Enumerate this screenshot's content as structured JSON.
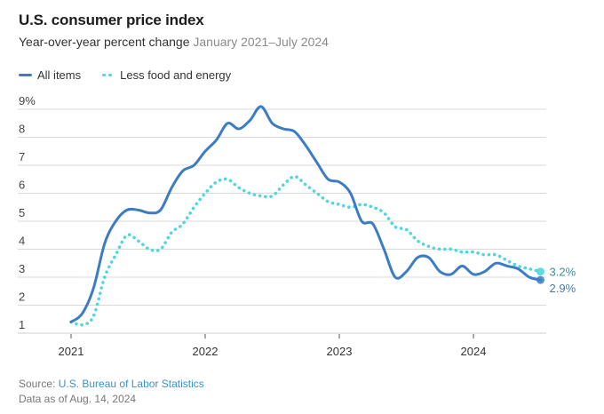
{
  "header": {
    "title": "U.S. consumer price index",
    "subtitle": "Year-over-year percent change",
    "date_range": "January 2021–July 2024"
  },
  "legend": [
    {
      "label": "All items",
      "style": "solid-line"
    },
    {
      "label": "Less food and energy",
      "style": "dotted-line"
    }
  ],
  "colors": {
    "all_items": "#3b7cc4",
    "core": "#4fd6df",
    "grid": "#d9d9d9",
    "end_label_all": "#4a7ba8",
    "end_label_core": "#3e8c94"
  },
  "footer": {
    "source_prefix": "Source: ",
    "source_link": "U.S. Bureau of Labor Statistics",
    "data_as_of": "Data as of Aug. 14, 2024"
  },
  "chart_data": {
    "type": "line",
    "title": "U.S. consumer price index",
    "subtitle": "Year-over-year percent change January 2021–July 2024",
    "xlabel": "",
    "ylabel": "",
    "x_start": "2021-01",
    "x_end": "2024-07",
    "x_ticks": [
      "2021",
      "2022",
      "2023",
      "2024"
    ],
    "y_ticks": [
      "9%",
      "8",
      "7",
      "6",
      "5",
      "4",
      "3",
      "2",
      "1"
    ],
    "y_tick_values": [
      9,
      8,
      7,
      6,
      5,
      4,
      3,
      2,
      1
    ],
    "ylim": [
      1,
      9
    ],
    "grid": true,
    "legend_position": "top-left",
    "series": [
      {
        "name": "All items",
        "style": "solid",
        "end_label": "2.9%",
        "values": [
          1.4,
          1.7,
          2.6,
          4.2,
          5.0,
          5.4,
          5.4,
          5.3,
          5.4,
          6.2,
          6.8,
          7.0,
          7.5,
          7.9,
          8.5,
          8.3,
          8.6,
          9.1,
          8.5,
          8.3,
          8.2,
          7.7,
          7.1,
          6.5,
          6.4,
          6.0,
          5.0,
          4.9,
          4.0,
          3.0,
          3.2,
          3.7,
          3.7,
          3.2,
          3.1,
          3.4,
          3.1,
          3.2,
          3.5,
          3.4,
          3.3,
          3.0,
          2.9
        ]
      },
      {
        "name": "Less food and energy",
        "style": "dotted",
        "end_label": "3.2%",
        "values": [
          1.4,
          1.3,
          1.6,
          3.0,
          3.8,
          4.5,
          4.3,
          4.0,
          4.0,
          4.6,
          4.9,
          5.5,
          6.0,
          6.4,
          6.5,
          6.2,
          6.0,
          5.9,
          5.9,
          6.3,
          6.6,
          6.3,
          6.0,
          5.7,
          5.6,
          5.5,
          5.6,
          5.5,
          5.3,
          4.8,
          4.7,
          4.3,
          4.1,
          4.0,
          4.0,
          3.9,
          3.9,
          3.8,
          3.8,
          3.6,
          3.4,
          3.3,
          3.2
        ]
      }
    ]
  }
}
